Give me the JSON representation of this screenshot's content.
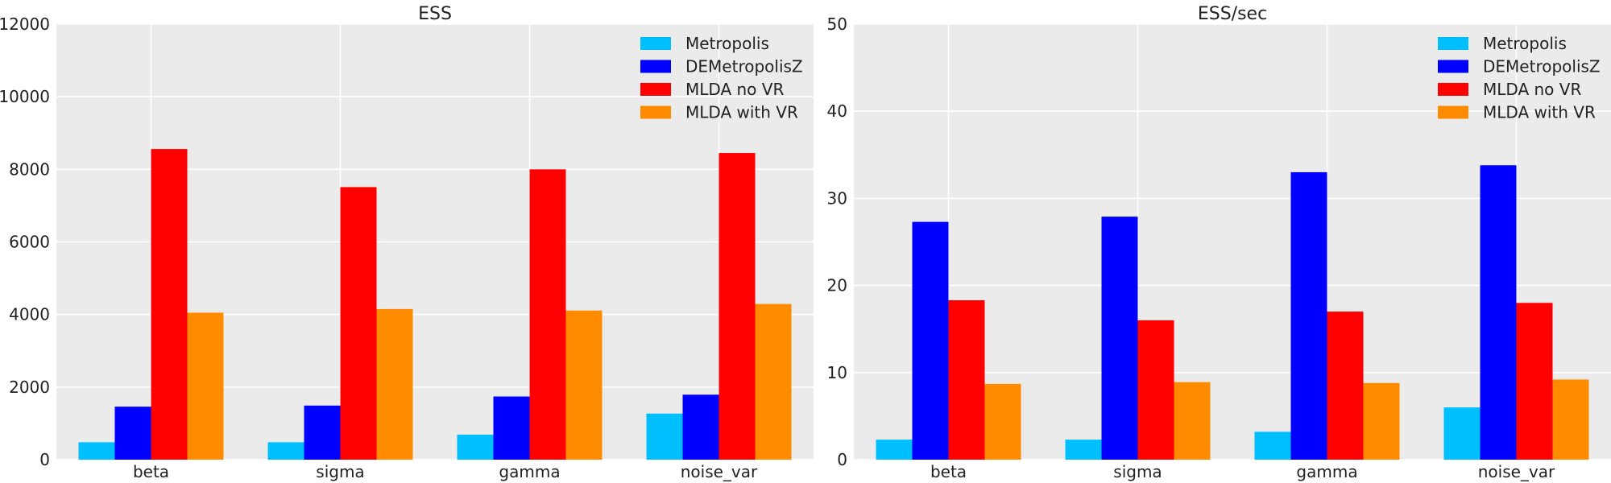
{
  "chart_data": [
    {
      "type": "bar",
      "title": "ESS",
      "xlabel": "",
      "ylabel": "",
      "categories": [
        "beta",
        "sigma",
        "gamma",
        "noise_var"
      ],
      "ylim": [
        0,
        12000
      ],
      "yticks": [
        0,
        2000,
        4000,
        6000,
        8000,
        10000,
        12000
      ],
      "grid": true,
      "legend_position": "top-right",
      "series": [
        {
          "name": "Metropolis",
          "color": "#00bfff",
          "values": [
            480,
            480,
            690,
            1270
          ]
        },
        {
          "name": "DEMetropolisZ",
          "color": "#0000ff",
          "values": [
            1460,
            1490,
            1740,
            1790
          ]
        },
        {
          "name": "MLDA no VR",
          "color": "#ff0000",
          "values": [
            8560,
            7510,
            8000,
            8450
          ]
        },
        {
          "name": "MLDA with VR",
          "color": "#ff8c00",
          "values": [
            4050,
            4150,
            4110,
            4290
          ]
        }
      ]
    },
    {
      "type": "bar",
      "title": "ESS/sec",
      "xlabel": "",
      "ylabel": "",
      "categories": [
        "beta",
        "sigma",
        "gamma",
        "noise_var"
      ],
      "ylim": [
        0,
        50
      ],
      "yticks": [
        0,
        10,
        20,
        30,
        40,
        50
      ],
      "grid": true,
      "legend_position": "top-right",
      "series": [
        {
          "name": "Metropolis",
          "color": "#00bfff",
          "values": [
            2.3,
            2.3,
            3.2,
            6.0
          ]
        },
        {
          "name": "DEMetropolisZ",
          "color": "#0000ff",
          "values": [
            27.3,
            27.9,
            33.0,
            33.8
          ]
        },
        {
          "name": "MLDA no VR",
          "color": "#ff0000",
          "values": [
            18.3,
            16.0,
            17.0,
            18.0
          ]
        },
        {
          "name": "MLDA with VR",
          "color": "#ff8c00",
          "values": [
            8.7,
            8.9,
            8.8,
            9.2
          ]
        }
      ]
    }
  ]
}
